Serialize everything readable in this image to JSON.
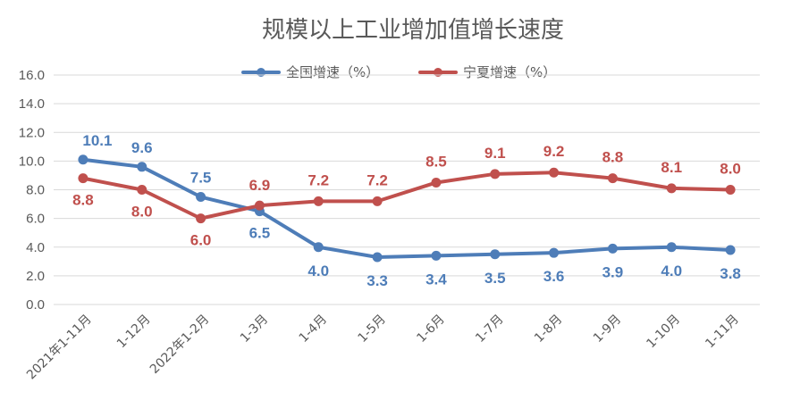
{
  "chart_data": {
    "type": "line",
    "title": "规模以上工业增加值增长速度",
    "categories": [
      "2021年1-11月",
      "1-12月",
      "2022年1-2月",
      "1-3月",
      "1-4月",
      "1-5月",
      "1-6月",
      "1-7月",
      "1-8月",
      "1-9月",
      "1-10月",
      "1-11月"
    ],
    "series": [
      {
        "name": "全国增速（%）",
        "color": "#4E7DB8",
        "values": [
          10.1,
          9.6,
          7.5,
          6.5,
          4.0,
          3.3,
          3.4,
          3.5,
          3.6,
          3.9,
          4.0,
          3.8
        ],
        "labels": [
          "10.1",
          "9.6",
          "7.5",
          "6.5",
          "4.0",
          "3.3",
          "3.4",
          "3.5",
          "3.6",
          "3.9",
          "4.0",
          "3.8"
        ]
      },
      {
        "name": "宁夏增速（%）",
        "color": "#C0504D",
        "values": [
          8.8,
          8.0,
          6.0,
          6.9,
          7.2,
          7.2,
          8.5,
          9.1,
          9.2,
          8.8,
          8.1,
          8.0
        ],
        "labels": [
          "8.8",
          "8.0",
          "6.0",
          "6.9",
          "7.2",
          "7.2",
          "8.5",
          "9.1",
          "9.2",
          "8.8",
          "8.1",
          "8.0"
        ]
      }
    ],
    "ylim": [
      0,
      16
    ],
    "yticks": [
      "0.0",
      "2.0",
      "4.0",
      "6.0",
      "8.0",
      "10.0",
      "12.0",
      "14.0",
      "16.0"
    ],
    "grid": true,
    "legend": "top"
  }
}
